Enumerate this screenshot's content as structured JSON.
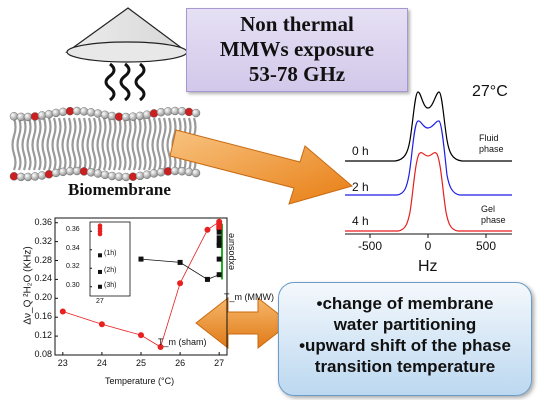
{
  "title": {
    "line1": "Non thermal",
    "line2": "MMWs exposure",
    "line3": "53-78 GHz"
  },
  "membrane": {
    "label": "Biomembrane"
  },
  "nmr": {
    "temperature": "27°C",
    "times": [
      "0 h",
      "2 h",
      "4 h"
    ],
    "phase_top_1": "Fluid",
    "phase_top_2": "phase",
    "phase_bottom_1": "Gel",
    "phase_bottom_2": "phase",
    "x_ticks": [
      "-500",
      "0",
      "500"
    ],
    "xlabel": "Hz",
    "colors": [
      "#000000",
      "#1f1fe6",
      "#e61f1f"
    ]
  },
  "conclusion": {
    "line1": "•change of membrane",
    "line2": "water partitioning",
    "line3": "•upward shift of the phase",
    "line4": "transition temperature"
  },
  "chart_data": {
    "type": "scatter",
    "ylabel": "Δν_Q ²H₂O (KHz)",
    "xlabel": "Temperature (°C)",
    "xlim": [
      22.8,
      27.2
    ],
    "ylim": [
      0.08,
      0.37
    ],
    "x_ticks": [
      "23",
      "24",
      "25",
      "26",
      "27"
    ],
    "y_ticks": [
      "0.08",
      "0.12",
      "0.16",
      "0.20",
      "0.24",
      "0.28",
      "0.32",
      "0.36"
    ],
    "series": [
      {
        "color": "#e82020",
        "x": [
          23,
          24,
          25,
          25.5,
          26,
          26.7,
          27,
          27,
          27,
          27
        ],
        "y": [
          0.172,
          0.145,
          0.122,
          0.097,
          0.232,
          0.345,
          0.362,
          0.357,
          0.352,
          0.347
        ]
      },
      {
        "color": "#111111",
        "x": [
          25,
          26,
          26.7,
          27,
          27,
          27,
          27,
          27,
          27
        ],
        "y": [
          0.283,
          0.276,
          0.24,
          0.25,
          0.283,
          0.312,
          0.318,
          0.328,
          0.34
        ]
      }
    ],
    "annotations": {
      "tm_sham": "T_m (sham)",
      "tm_mmw": "T_m (MMW)",
      "exposure": "exposure"
    },
    "inset": {
      "x_label": "27",
      "y_ticks": [
        "0.36",
        "0.34",
        "0.32",
        "0.30"
      ],
      "labels": [
        "(1h)",
        "(2h)",
        "(3h)"
      ],
      "red_y": [
        0.366,
        0.363,
        0.36,
        0.357
      ],
      "black_y": [
        0.334,
        0.316,
        0.3
      ]
    }
  }
}
